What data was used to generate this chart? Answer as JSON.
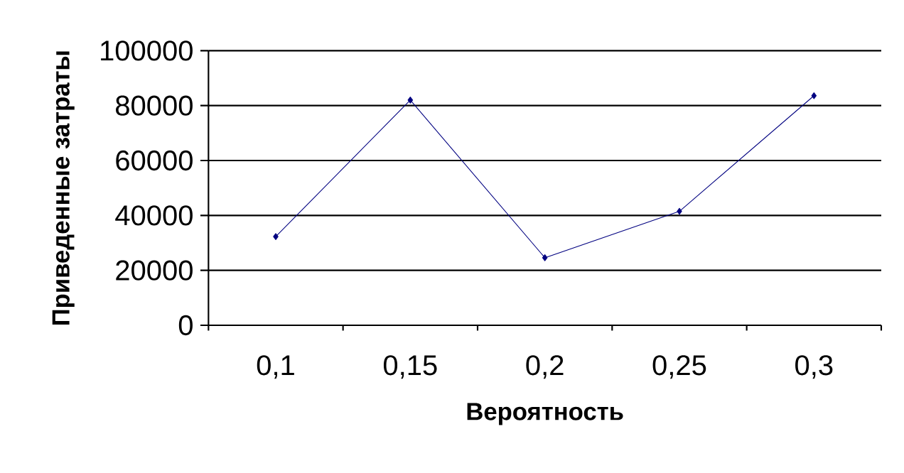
{
  "chart_data": {
    "type": "line",
    "xlabel": "Вероятность",
    "ylabel": "Приведенные затраты",
    "categories": [
      "0,1",
      "0,15",
      "0,2",
      "0,25",
      "0,3"
    ],
    "series": [
      {
        "color": "#000080",
        "values": [
          32300,
          82000,
          24600,
          41500,
          83600
        ]
      }
    ],
    "ylim": [
      0,
      100000
    ],
    "yticks": [
      0,
      20000,
      40000,
      60000,
      80000,
      100000
    ],
    "grid": "y",
    "marker": "diamond",
    "line_style": "solid"
  }
}
